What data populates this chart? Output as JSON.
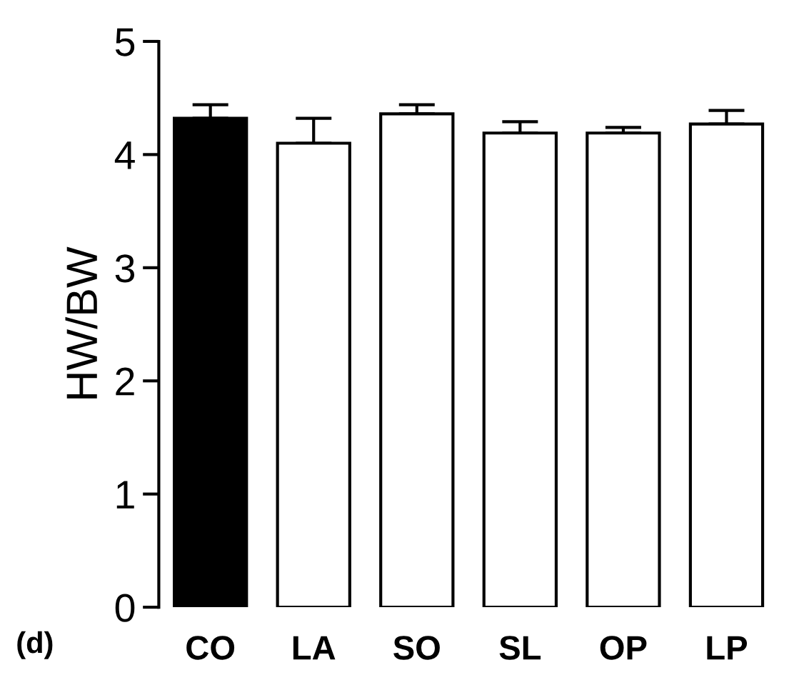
{
  "chart_data": {
    "type": "bar",
    "ylabel": "HW/BW",
    "categories": [
      "CO",
      "LA",
      "SO",
      "SL",
      "OP",
      "LP"
    ],
    "values": [
      4.32,
      4.1,
      4.36,
      4.19,
      4.19,
      4.27
    ],
    "colors": [
      "#000000",
      "#ffffff",
      "#ffffff",
      "#ffffff",
      "#ffffff",
      "#ffffff"
    ],
    "errors": [
      [
        4.32,
        4.44
      ],
      [
        4.1,
        4.32
      ],
      [
        4.36,
        4.44
      ],
      [
        4.19,
        4.29
      ],
      [
        4.19,
        4.24
      ],
      [
        4.27,
        4.39
      ]
    ],
    "ylim": [
      0,
      5
    ],
    "yticks": [
      0,
      1,
      2,
      3,
      4,
      5
    ],
    "grid": false,
    "legend": false,
    "annotations": [
      "(d)"
    ]
  }
}
